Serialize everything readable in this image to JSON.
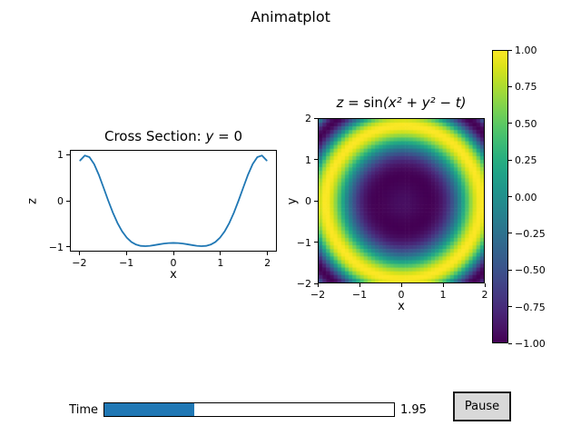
{
  "figure": {
    "title": "Animatplot",
    "background": "#ffffff"
  },
  "colors": {
    "line": "#1f77b4",
    "slider_fill": "#1f77b4",
    "button_bg": "#d9d9d9",
    "axis": "#000000"
  },
  "colormap": {
    "name": "viridis",
    "stops": [
      "#440154",
      "#481567",
      "#482677",
      "#453781",
      "#404788",
      "#39568C",
      "#33638D",
      "#2D708E",
      "#287D8E",
      "#238A8D",
      "#1F968B",
      "#20A387",
      "#29AF7F",
      "#3CBB75",
      "#55C667",
      "#73D055",
      "#95D840",
      "#B8DE29",
      "#DCE319",
      "#FDE725"
    ]
  },
  "chart_data": [
    {
      "type": "line",
      "title_parts": [
        {
          "text": "Cross Section: ",
          "italic": false
        },
        {
          "text": "y",
          "italic": true
        },
        {
          "text": " = 0",
          "italic": false
        }
      ],
      "xlabel": "x",
      "ylabel": "z",
      "xlim": [
        -2.2,
        2.2
      ],
      "ylim": [
        -1.1,
        1.1
      ],
      "xticks": {
        "values": [
          -2,
          -1,
          0,
          1,
          2
        ],
        "labels": [
          "−2",
          "−1",
          "0",
          "1",
          "2"
        ]
      },
      "yticks": {
        "values": [
          -1,
          0,
          1
        ],
        "labels": [
          "−1",
          "0",
          "1"
        ]
      },
      "line_color": "#1f77b4",
      "x": [
        -2.0,
        -1.9,
        -1.8,
        -1.7,
        -1.6,
        -1.5,
        -1.4,
        -1.3,
        -1.2,
        -1.1,
        -1.0,
        -0.9,
        -0.8,
        -0.7,
        -0.6,
        -0.5,
        -0.4,
        -0.3,
        -0.2,
        -0.1,
        0.0,
        0.1,
        0.2,
        0.3,
        0.4,
        0.5,
        0.6,
        0.7,
        0.8,
        0.9,
        1.0,
        1.1,
        1.2,
        1.3,
        1.4,
        1.5,
        1.6,
        1.7,
        1.8,
        1.9,
        2.0
      ],
      "z": [
        0.887,
        0.996,
        0.96,
        0.808,
        0.573,
        0.295,
        0.01,
        -0.257,
        -0.488,
        -0.674,
        -0.813,
        -0.909,
        -0.966,
        -0.994,
        -1.0,
        -0.992,
        -0.976,
        -0.959,
        -0.943,
        -0.933,
        -0.929,
        -0.933,
        -0.943,
        -0.959,
        -0.976,
        -0.992,
        -1.0,
        -0.994,
        -0.966,
        -0.909,
        -0.813,
        -0.674,
        -0.488,
        -0.257,
        0.01,
        0.295,
        0.573,
        0.808,
        0.96,
        0.996,
        0.887
      ]
    },
    {
      "type": "heatmap",
      "title_parts": [
        {
          "text": "z = ",
          "italic": true
        },
        {
          "text": "sin",
          "italic": false
        },
        {
          "text": "(x² + y² − t)",
          "italic": true
        }
      ],
      "xlabel": "x",
      "ylabel": "y",
      "xlim": [
        -2,
        2
      ],
      "ylim": [
        -2,
        2
      ],
      "xticks": {
        "values": [
          -2,
          -1,
          0,
          1,
          2
        ],
        "labels": [
          "−2",
          "−1",
          "0",
          "1",
          "2"
        ]
      },
      "yticks": {
        "values": [
          2,
          1,
          0,
          -1,
          -2
        ],
        "labels": [
          "2",
          "1",
          "0",
          "−1",
          "−2"
        ]
      },
      "formula": "sin(x^2 + y^2 - t)",
      "t": 1.95,
      "resolution": 44,
      "vmin": -1,
      "vmax": 1,
      "colormap": "viridis"
    },
    {
      "type": "colorbar",
      "orientation": "vertical",
      "vmin": -1,
      "vmax": 1,
      "ticks": {
        "values": [
          1.0,
          0.75,
          0.5,
          0.25,
          0.0,
          -0.25,
          -0.5,
          -0.75,
          -1.0
        ],
        "labels": [
          "1.00",
          "0.75",
          "0.50",
          "0.25",
          "0.00",
          "−0.25",
          "−0.50",
          "−0.75",
          "−1.00"
        ]
      }
    }
  ],
  "controls": {
    "slider": {
      "label": "Time",
      "min": 0,
      "max": 6.283,
      "value": 1.95,
      "value_display": "1.95"
    },
    "pause_button": {
      "label": "Pause"
    }
  }
}
